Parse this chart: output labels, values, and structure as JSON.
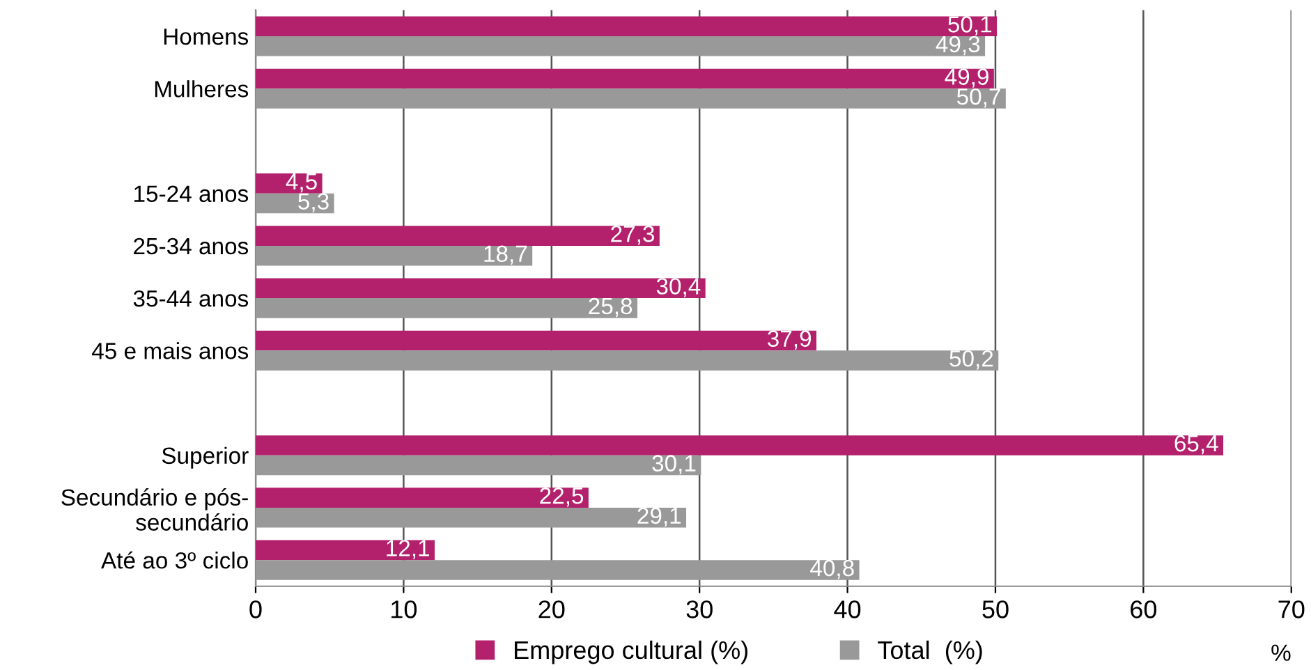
{
  "chart_data": {
    "type": "bar",
    "orientation": "horizontal",
    "categories": [
      "Homens",
      "Mulheres",
      null,
      "15-24 anos",
      "25-34 anos",
      "35-44 anos",
      "45 e mais anos",
      null,
      "Superior",
      "Secundário e pós-\nsecundário",
      "Até ao 3º ciclo"
    ],
    "series": [
      {
        "name": "Emprego cultural (%)",
        "color": "#b3206b",
        "values": [
          50.1,
          49.9,
          null,
          4.5,
          27.3,
          30.4,
          37.9,
          null,
          65.4,
          22.5,
          12.1
        ],
        "value_labels": [
          "50,1",
          "49,9",
          null,
          "4,5",
          "27,3",
          "30,4",
          "37,9",
          null,
          "65,4",
          "22,5",
          "12,1"
        ]
      },
      {
        "name": "Total  (%)",
        "color": "#999999",
        "values": [
          49.3,
          50.7,
          null,
          5.3,
          18.7,
          25.8,
          50.2,
          null,
          30.1,
          29.1,
          40.8
        ],
        "value_labels": [
          "49,3",
          "50,7",
          null,
          "5,3",
          "18,7",
          "25,8",
          "50,2",
          null,
          "30,1",
          "29,1",
          "40,8"
        ]
      }
    ],
    "xlim": [
      0,
      70
    ],
    "xticks": [
      0,
      10,
      20,
      30,
      40,
      50,
      60,
      70
    ],
    "xlabel": "%",
    "grid": "x",
    "legend": "bottom"
  }
}
